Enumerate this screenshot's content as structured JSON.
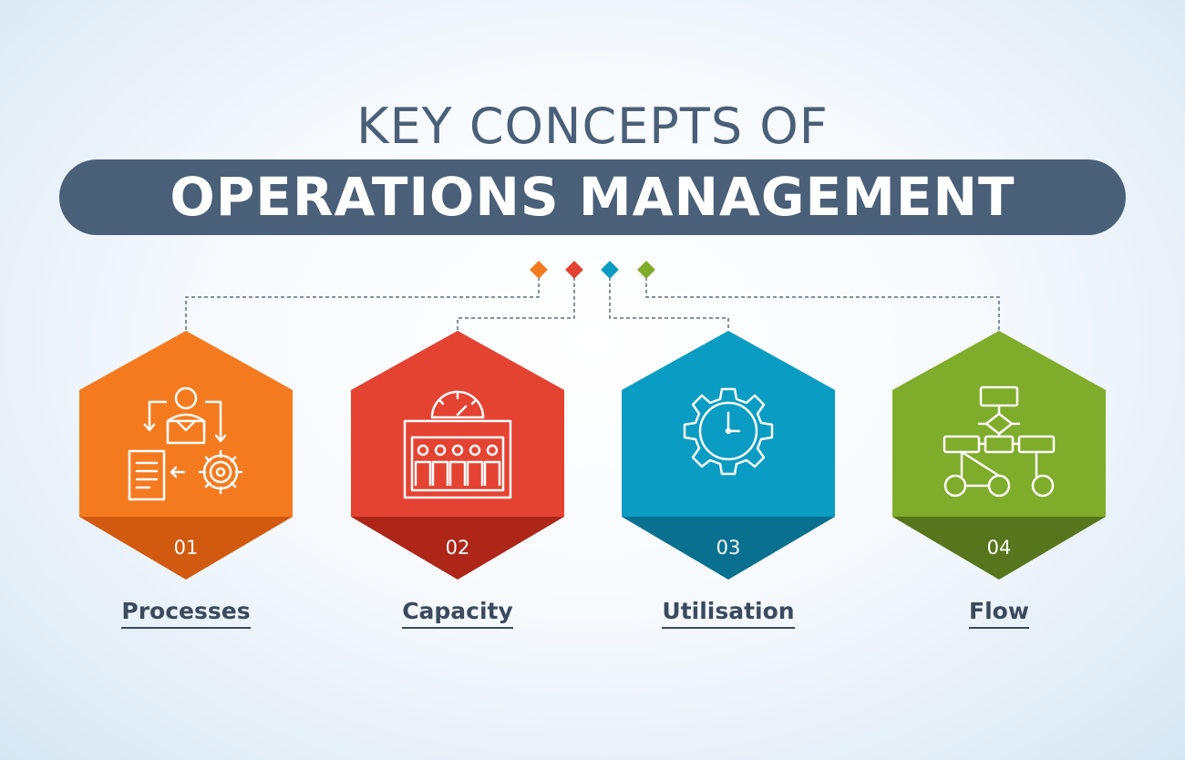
{
  "title": {
    "line1": "KEY CONCEPTS OF",
    "line2": "OPERATIONS MANAGEMENT"
  },
  "colors": {
    "title_bar": "#4a5f78",
    "orange": "#f47a20",
    "red": "#e44332",
    "blue": "#0a9cc2",
    "green": "#7fac2a"
  },
  "concepts": [
    {
      "number": "01",
      "label": "Processes",
      "icon": "process-cycle-icon",
      "color": "#f47a20",
      "dark": "#d25a10"
    },
    {
      "number": "02",
      "label": "Capacity",
      "icon": "capacity-meter-icon",
      "color": "#e44332",
      "dark": "#ad2618"
    },
    {
      "number": "03",
      "label": "Utilisation",
      "icon": "gear-clock-icon",
      "color": "#0a9cc2",
      "dark": "#0a708f"
    },
    {
      "number": "04",
      "label": "Flow",
      "icon": "flowchart-icon",
      "color": "#7fac2a",
      "dark": "#57751c"
    }
  ]
}
